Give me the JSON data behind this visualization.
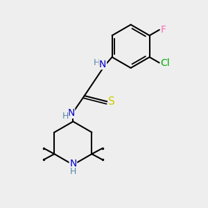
{
  "background_color": "#eeeeee",
  "atom_colors": {
    "C": "#000000",
    "N": "#0000cc",
    "S": "#cccc00",
    "Cl": "#00aa00",
    "F": "#ff69b4",
    "H": "#5588aa"
  },
  "bond_color": "#000000",
  "bond_width": 1.5,
  "font_size_atoms": 10
}
